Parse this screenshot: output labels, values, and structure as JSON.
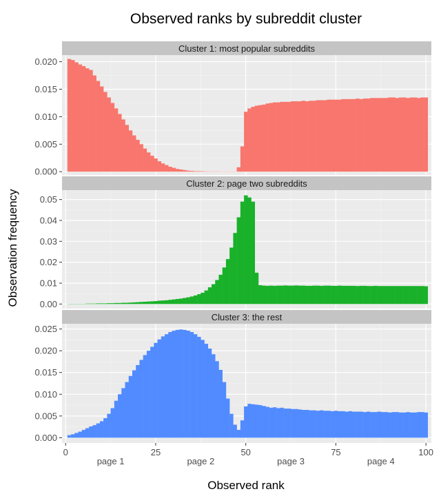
{
  "chart_data": {
    "type": "bar",
    "title": "Observed ranks by subreddit cluster",
    "xlabel": "Observed rank",
    "ylabel": "Observation frequency",
    "xlim": [
      -1,
      101.5
    ],
    "x_ticks": [
      0,
      25,
      50,
      75,
      100
    ],
    "page_labels": [
      {
        "x": 12.5,
        "label": "page 1"
      },
      {
        "x": 37.5,
        "label": "page 2"
      },
      {
        "x": 62.5,
        "label": "page 3"
      },
      {
        "x": 87.5,
        "label": "page 4"
      }
    ],
    "grid": true,
    "bins": "observed ranks 1-100, one bar per rank",
    "panels": [
      {
        "strip": "Cluster 1: most popular subreddits",
        "color": "#F8766D",
        "ylim": [
          -0.0006,
          0.0212
        ],
        "y_ticks": [
          0.0,
          0.005,
          0.01,
          0.015,
          0.02
        ],
        "y_tick_labels": [
          "0.000",
          "0.005",
          "0.010",
          "0.015",
          "0.020"
        ],
        "values": [
          0.0205,
          0.0203,
          0.0199,
          0.0195,
          0.0192,
          0.0188,
          0.0185,
          0.0175,
          0.0165,
          0.0155,
          0.0145,
          0.0135,
          0.0125,
          0.0115,
          0.0105,
          0.0095,
          0.0085,
          0.0075,
          0.0066,
          0.0058,
          0.005,
          0.0042,
          0.0035,
          0.0029,
          0.0024,
          0.0019,
          0.0015,
          0.0012,
          0.0009,
          0.0007,
          0.0005,
          0.0004,
          0.0003,
          0.0002,
          0.00015,
          0.0001,
          0.0001,
          8e-05,
          6e-05,
          5e-05,
          5e-05,
          5e-05,
          4e-05,
          4e-05,
          4e-05,
          4e-05,
          4e-05,
          0.0008,
          0.0046,
          0.0109,
          0.0115,
          0.0118,
          0.012,
          0.0121,
          0.0122,
          0.0124,
          0.0125,
          0.0126,
          0.0126,
          0.0127,
          0.0127,
          0.0127,
          0.0128,
          0.0128,
          0.0128,
          0.0129,
          0.0128,
          0.0129,
          0.0129,
          0.013,
          0.013,
          0.013,
          0.0131,
          0.0131,
          0.0131,
          0.0131,
          0.0132,
          0.0132,
          0.0132,
          0.0132,
          0.0133,
          0.0132,
          0.0133,
          0.0133,
          0.0134,
          0.0134,
          0.0134,
          0.0134,
          0.0134,
          0.0135,
          0.0135,
          0.0134,
          0.0135,
          0.0135,
          0.0134,
          0.0135,
          0.0135,
          0.0134,
          0.0135,
          0.0135
        ]
      },
      {
        "strip": "Cluster 2: page two subreddits",
        "color": "#1AB12A",
        "ylim": [
          -0.0022,
          0.0545
        ],
        "y_ticks": [
          0.0,
          0.01,
          0.02,
          0.03,
          0.04,
          0.05
        ],
        "y_tick_labels": [
          "0.00",
          "0.01",
          "0.02",
          "0.03",
          "0.04",
          "0.05"
        ],
        "values": [
          0.0001,
          0.0001,
          0.0001,
          0.0001,
          0.0001,
          0.0002,
          0.0002,
          0.0002,
          0.0003,
          0.0003,
          0.0003,
          0.0004,
          0.0004,
          0.0005,
          0.0005,
          0.0006,
          0.0006,
          0.0007,
          0.0008,
          0.0009,
          0.001,
          0.0011,
          0.0012,
          0.0013,
          0.0014,
          0.0016,
          0.0017,
          0.0018,
          0.002,
          0.0022,
          0.0024,
          0.0026,
          0.0029,
          0.0032,
          0.0036,
          0.0041,
          0.0047,
          0.0054,
          0.0065,
          0.008,
          0.0095,
          0.0115,
          0.014,
          0.0175,
          0.0215,
          0.027,
          0.034,
          0.0415,
          0.049,
          0.052,
          0.051,
          0.049,
          0.015,
          0.009,
          0.0088,
          0.0087,
          0.0088,
          0.0087,
          0.0088,
          0.0088,
          0.0089,
          0.0088,
          0.0088,
          0.0089,
          0.0088,
          0.0088,
          0.0087,
          0.0087,
          0.0088,
          0.0088,
          0.0087,
          0.0088,
          0.0088,
          0.0087,
          0.0087,
          0.0088,
          0.0087,
          0.0087,
          0.0087,
          0.0087,
          0.0086,
          0.0087,
          0.0087,
          0.0086,
          0.0086,
          0.0087,
          0.0086,
          0.0086,
          0.0086,
          0.0086,
          0.0086,
          0.0086,
          0.0086,
          0.0086,
          0.0086,
          0.0086,
          0.0086,
          0.0086,
          0.0086,
          0.0085
        ]
      },
      {
        "strip": "Cluster 3: the rest",
        "color": "#518BFF",
        "ylim": [
          -0.0012,
          0.0262
        ],
        "y_ticks": [
          0.0,
          0.005,
          0.01,
          0.015,
          0.02,
          0.025
        ],
        "y_tick_labels": [
          "0.000",
          "0.005",
          "0.010",
          "0.015",
          "0.020",
          "0.025"
        ],
        "values": [
          0.0006,
          0.0008,
          0.0011,
          0.0014,
          0.0018,
          0.0022,
          0.0026,
          0.0029,
          0.0033,
          0.0038,
          0.0045,
          0.0055,
          0.0068,
          0.0085,
          0.01,
          0.0114,
          0.0128,
          0.0142,
          0.0155,
          0.0167,
          0.0179,
          0.019,
          0.02,
          0.0209,
          0.0218,
          0.0226,
          0.0233,
          0.0238,
          0.0243,
          0.0246,
          0.0248,
          0.0249,
          0.0248,
          0.0246,
          0.0243,
          0.0238,
          0.0232,
          0.0225,
          0.0216,
          0.0205,
          0.0192,
          0.0176,
          0.0156,
          0.0128,
          0.009,
          0.0055,
          0.003,
          0.0018,
          0.004,
          0.0072,
          0.0078,
          0.0077,
          0.0076,
          0.0075,
          0.0073,
          0.0071,
          0.0069,
          0.007,
          0.0068,
          0.0069,
          0.0067,
          0.0067,
          0.0066,
          0.0066,
          0.0065,
          0.0064,
          0.0064,
          0.0063,
          0.0063,
          0.0062,
          0.0063,
          0.0062,
          0.0062,
          0.0061,
          0.0062,
          0.0061,
          0.0061,
          0.006,
          0.0061,
          0.006,
          0.006,
          0.006,
          0.0059,
          0.006,
          0.0059,
          0.0059,
          0.006,
          0.0059,
          0.0059,
          0.0058,
          0.0059,
          0.0059,
          0.0058,
          0.0058,
          0.0059,
          0.0058,
          0.0058,
          0.0059,
          0.0059,
          0.0058
        ]
      }
    ]
  }
}
